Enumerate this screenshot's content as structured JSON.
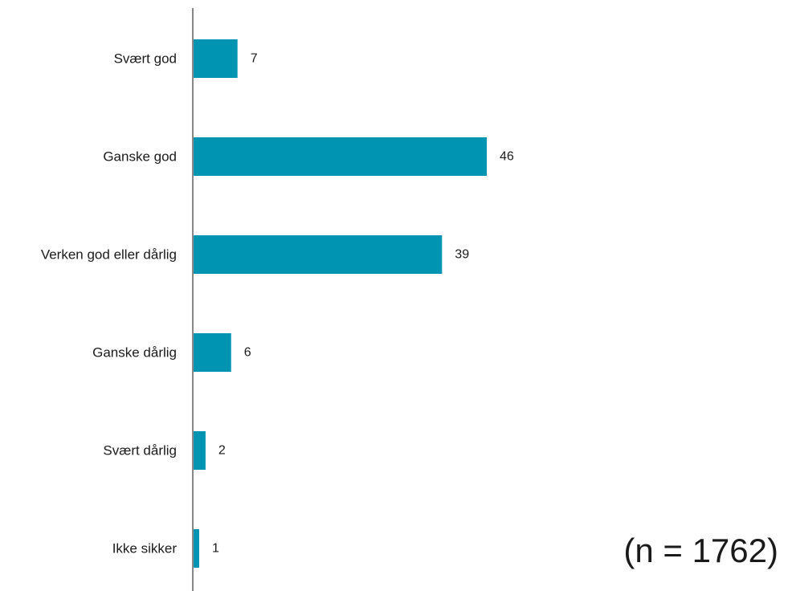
{
  "chart_data": {
    "type": "bar",
    "orientation": "horizontal",
    "categories": [
      "Svært god",
      "Ganske god",
      "Verken god eller dårlig",
      "Ganske dårlig",
      "Svært dårlig",
      "Ikke sikker"
    ],
    "values": [
      7,
      46,
      39,
      6,
      2,
      1
    ],
    "data_labels": [
      "7",
      "46",
      "39",
      "6",
      "2",
      "1"
    ],
    "title": "",
    "xlabel": "",
    "ylabel": "",
    "xlim": [
      0,
      46
    ],
    "grid": false,
    "legend": "none",
    "bar_color": "#0094B3",
    "axis_color": "#888888"
  },
  "note": "(n = 1762)"
}
